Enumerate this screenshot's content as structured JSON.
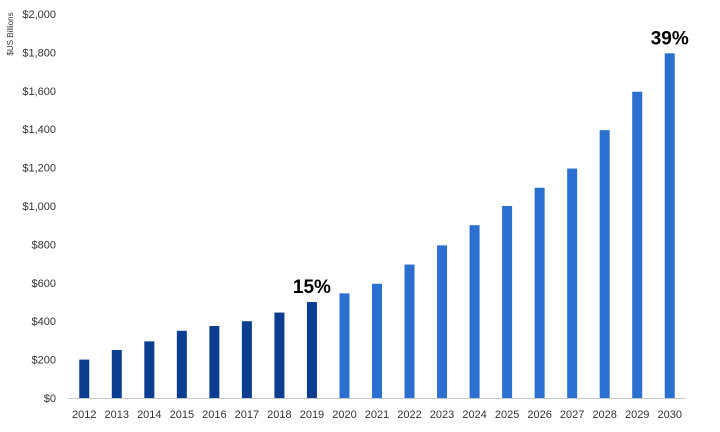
{
  "chart_data": {
    "type": "bar",
    "title": "",
    "xlabel": "",
    "ylabel": "$US Billions",
    "ylim": [
      0,
      2000
    ],
    "y_ticks": [
      0,
      200,
      400,
      600,
      800,
      1000,
      1200,
      1400,
      1600,
      1800,
      2000
    ],
    "y_tick_labels": [
      "$0",
      "$200",
      "$400",
      "$600",
      "$800",
      "$1,000",
      "$1,200",
      "$1,400",
      "$1,600",
      "$1,800",
      "$2,000"
    ],
    "grid": false,
    "legend": "none",
    "categories": [
      "2012",
      "2013",
      "2014",
      "2015",
      "2016",
      "2017",
      "2018",
      "2019",
      "2020",
      "2021",
      "2022",
      "2023",
      "2024",
      "2025",
      "2026",
      "2027",
      "2028",
      "2029",
      "2030"
    ],
    "values": [
      200,
      250,
      295,
      350,
      375,
      400,
      445,
      500,
      545,
      595,
      695,
      795,
      900,
      1000,
      1095,
      1195,
      1395,
      1595,
      1795
    ],
    "colors": {
      "historical": "#0B3D91",
      "projected": "#2B6FD1"
    },
    "historical_through": "2019",
    "annotations": [
      {
        "category": "2019",
        "text": "15%"
      },
      {
        "category": "2030",
        "text": "39%"
      }
    ]
  }
}
